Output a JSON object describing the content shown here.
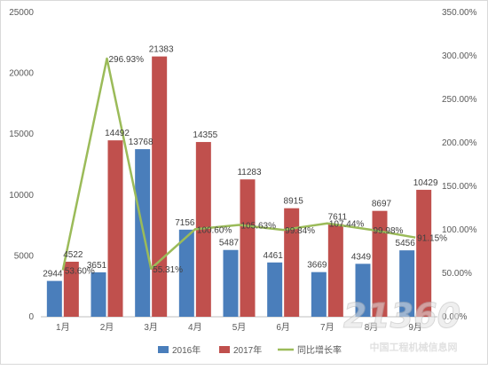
{
  "chart_data": {
    "type": "bar",
    "categories": [
      "1月",
      "2月",
      "3月",
      "4月",
      "5月",
      "6月",
      "7月",
      "8月",
      "9月"
    ],
    "series": [
      {
        "name": "2016年",
        "type": "bar",
        "axis": "left",
        "color": "#4a7ebb",
        "values": [
          2944,
          3651,
          13768,
          7156,
          5487,
          4461,
          3669,
          4349,
          5456
        ]
      },
      {
        "name": "2017年",
        "type": "bar",
        "axis": "left",
        "color": "#c0504d",
        "values": [
          4522,
          14492,
          21383,
          14355,
          11283,
          8915,
          7611,
          8697,
          10429
        ]
      },
      {
        "name": "同比增长率",
        "type": "line",
        "axis": "right",
        "color": "#9bbb59",
        "values": [
          53.6,
          296.93,
          55.31,
          100.6,
          105.63,
          99.84,
          107.44,
          99.98,
          91.15
        ],
        "labels": [
          "53.60%",
          "296.93%",
          "55.31%",
          "100.60%",
          "105.63%",
          "99.84%",
          "107.44%",
          "99.98%",
          "91.15%"
        ]
      }
    ],
    "ylim": [
      0,
      25000
    ],
    "y_ticks": [
      "0",
      "5000",
      "10000",
      "15000",
      "20000",
      "25000"
    ],
    "y2lim": [
      0,
      350
    ],
    "y2_ticks": [
      "0.00%",
      "50.00%",
      "100.00%",
      "150.00%",
      "200.00%",
      "250.00%",
      "300.00%",
      "350.00%"
    ],
    "grid": false,
    "legend_position": "bottom"
  },
  "watermark": {
    "text": "21360",
    "subtext": "中国工程机械信息网"
  }
}
